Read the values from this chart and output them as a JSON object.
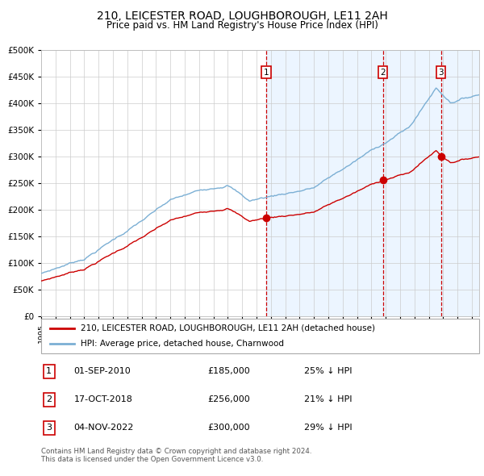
{
  "title": "210, LEICESTER ROAD, LOUGHBOROUGH, LE11 2AH",
  "subtitle": "Price paid vs. HM Land Registry's House Price Index (HPI)",
  "legend_property": "210, LEICESTER ROAD, LOUGHBOROUGH, LE11 2AH (detached house)",
  "legend_hpi": "HPI: Average price, detached house, Charnwood",
  "footer1": "Contains HM Land Registry data © Crown copyright and database right 2024.",
  "footer2": "This data is licensed under the Open Government Licence v3.0.",
  "transactions": [
    {
      "num": 1,
      "date": "01-SEP-2010",
      "price": "£185,000",
      "pct": "25% ↓ HPI"
    },
    {
      "num": 2,
      "date": "17-OCT-2018",
      "price": "£256,000",
      "pct": "21% ↓ HPI"
    },
    {
      "num": 3,
      "date": "04-NOV-2022",
      "price": "£300,000",
      "pct": "29% ↓ HPI"
    }
  ],
  "transaction_dates_decimal": [
    2010.667,
    2018.792,
    2022.836
  ],
  "transaction_prices": [
    185000,
    256000,
    300000
  ],
  "ylim": [
    0,
    500000
  ],
  "yticks": [
    0,
    50000,
    100000,
    150000,
    200000,
    250000,
    300000,
    350000,
    400000,
    450000,
    500000
  ],
  "xlim_start": 1995.0,
  "xlim_end": 2025.5,
  "hpi_color": "#7bafd4",
  "property_color": "#cc0000",
  "shade_color": "#ddeeff",
  "grid_color": "#cccccc",
  "title_fontsize": 10,
  "subtitle_fontsize": 8.5
}
